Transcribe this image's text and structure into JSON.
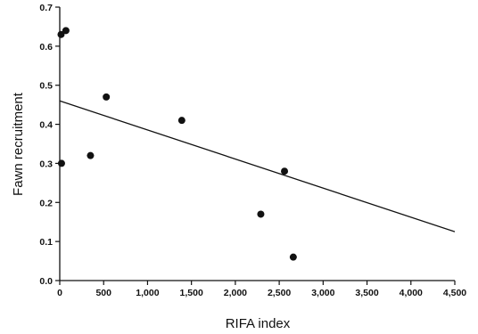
{
  "chart_data": {
    "type": "scatter",
    "xlabel": "RIFA index",
    "ylabel": "Fawn recruitment",
    "xlim": [
      0,
      4500
    ],
    "ylim": [
      0,
      0.7
    ],
    "x_ticks": [
      0,
      500,
      1000,
      1500,
      2000,
      2500,
      3000,
      3500,
      4000,
      4500
    ],
    "x_tick_labels": [
      "0",
      "500",
      "1,000",
      "1,500",
      "2,000",
      "2,500",
      "3,000",
      "3,500",
      "4,000",
      "4,500"
    ],
    "y_ticks": [
      0,
      0.1,
      0.2,
      0.3,
      0.4,
      0.5,
      0.6,
      0.7
    ],
    "y_tick_labels": [
      "0.0",
      "0.1",
      "0.2",
      "0.3",
      "0.4",
      "0.5",
      "0.6",
      "0.7"
    ],
    "grid": false,
    "legend": "none",
    "points": [
      {
        "x": 15,
        "y": 0.63
      },
      {
        "x": 70,
        "y": 0.64
      },
      {
        "x": 20,
        "y": 0.3
      },
      {
        "x": 350,
        "y": 0.32
      },
      {
        "x": 530,
        "y": 0.47
      },
      {
        "x": 1390,
        "y": 0.41
      },
      {
        "x": 2290,
        "y": 0.17
      },
      {
        "x": 2560,
        "y": 0.28
      },
      {
        "x": 2660,
        "y": 0.06
      }
    ],
    "trendline": {
      "type": "linear",
      "x": [
        0,
        4500
      ],
      "y": [
        0.46,
        0.125
      ]
    },
    "colors": {
      "point": "#111111",
      "line": "#111111",
      "axis": "#111111"
    }
  }
}
